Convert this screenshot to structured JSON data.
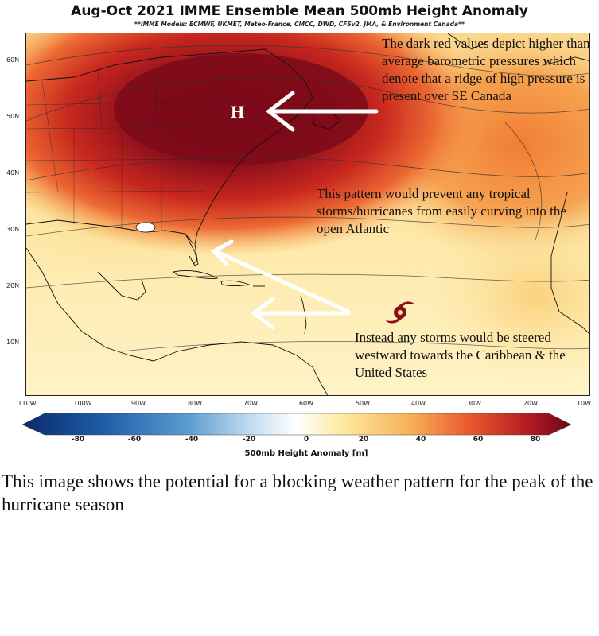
{
  "header": {
    "title": "Aug-Oct 2021 IMME Ensemble Mean 500mb Height Anomaly",
    "subtitle": "**IMME Models: ECMWF, UKMET, Meteo-France, CMCC, DWD, CFSv2, JMA, & Environment Canada**"
  },
  "map": {
    "lat_labels": [
      "60N",
      "50N",
      "40N",
      "30N",
      "20N",
      "10N"
    ],
    "lon_labels": [
      "110W",
      "100W",
      "90W",
      "80W",
      "70W",
      "60W",
      "50W",
      "40W",
      "30W",
      "20W",
      "10W"
    ],
    "high_marker": "H",
    "annotations": {
      "ridge": "The dark red values depict higher than average barometric pressures which denote that a ridge of high pressure is present over SE Canada",
      "pattern": "This pattern would prevent any tropical storms/hurricanes from easily curving into the open Atlantic",
      "steering": "Instead any storms would be steered westward towards the Caribbean & the United States"
    },
    "icons": [
      "hurricane-symbol-icon",
      "arrow-left-icon"
    ],
    "colors": {
      "deep_red": "#7a0a18",
      "red": "#c8281e",
      "orange": "#f08a3c",
      "light_yellow": "#fef0b8",
      "white": "#ffffff",
      "blue": "#2f7fc1",
      "navy": "#0a2a6a"
    }
  },
  "colorbar": {
    "ticks": [
      "-80",
      "-60",
      "-40",
      "-20",
      "0",
      "20",
      "40",
      "60",
      "80"
    ],
    "label": "500mb Height Anomaly [m]"
  },
  "caption": "This image shows the potential for a blocking weather pattern for the peak of the hurricane season"
}
